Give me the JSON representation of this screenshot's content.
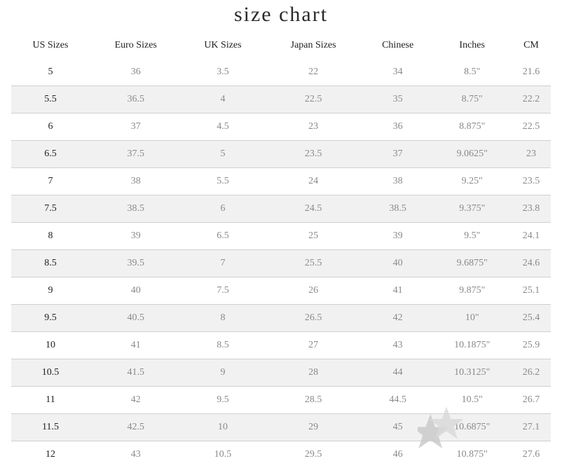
{
  "title": "size chart",
  "headers": [
    "US Sizes",
    "Euro Sizes",
    "UK Sizes",
    "Japan Sizes",
    "Chinese",
    "Inches",
    "CM"
  ],
  "rows": [
    [
      "5",
      "36",
      "3.5",
      "22",
      "34",
      "8.5\"",
      "21.6"
    ],
    [
      "5.5",
      "36.5",
      "4",
      "22.5",
      "35",
      "8.75\"",
      "22.2"
    ],
    [
      "6",
      "37",
      "4.5",
      "23",
      "36",
      "8.875\"",
      "22.5"
    ],
    [
      "6.5",
      "37.5",
      "5",
      "23.5",
      "37",
      "9.0625\"",
      "23"
    ],
    [
      "7",
      "38",
      "5.5",
      "24",
      "38",
      "9.25\"",
      "23.5"
    ],
    [
      "7.5",
      "38.5",
      "6",
      "24.5",
      "38.5",
      "9.375\"",
      "23.8"
    ],
    [
      "8",
      "39",
      "6.5",
      "25",
      "39",
      "9.5\"",
      "24.1"
    ],
    [
      "8.5",
      "39.5",
      "7",
      "25.5",
      "40",
      "9.6875\"",
      "24.6"
    ],
    [
      "9",
      "40",
      "7.5",
      "26",
      "41",
      "9.875\"",
      "25.1"
    ],
    [
      "9.5",
      "40.5",
      "8",
      "26.5",
      "42",
      "10\"",
      "25.4"
    ],
    [
      "10",
      "41",
      "8.5",
      "27",
      "43",
      "10.1875\"",
      "25.9"
    ],
    [
      "10.5",
      "41.5",
      "9",
      "28",
      "44",
      "10.3125\"",
      "26.2"
    ],
    [
      "11",
      "42",
      "9.5",
      "28.5",
      "44.5",
      "10.5\"",
      "26.7"
    ],
    [
      "11.5",
      "42.5",
      "10",
      "29",
      "45",
      "10.6875\"",
      "27.1"
    ],
    [
      "12",
      "43",
      "10.5",
      "29.5",
      "46",
      "10.875\"",
      "27.6"
    ]
  ],
  "colors": {
    "stripe": "#f1f1f1",
    "divider": "#d0d0d0",
    "text": "#8a8a8a",
    "watermark": "#c8c8c8"
  },
  "watermark_icon": "star-icon"
}
